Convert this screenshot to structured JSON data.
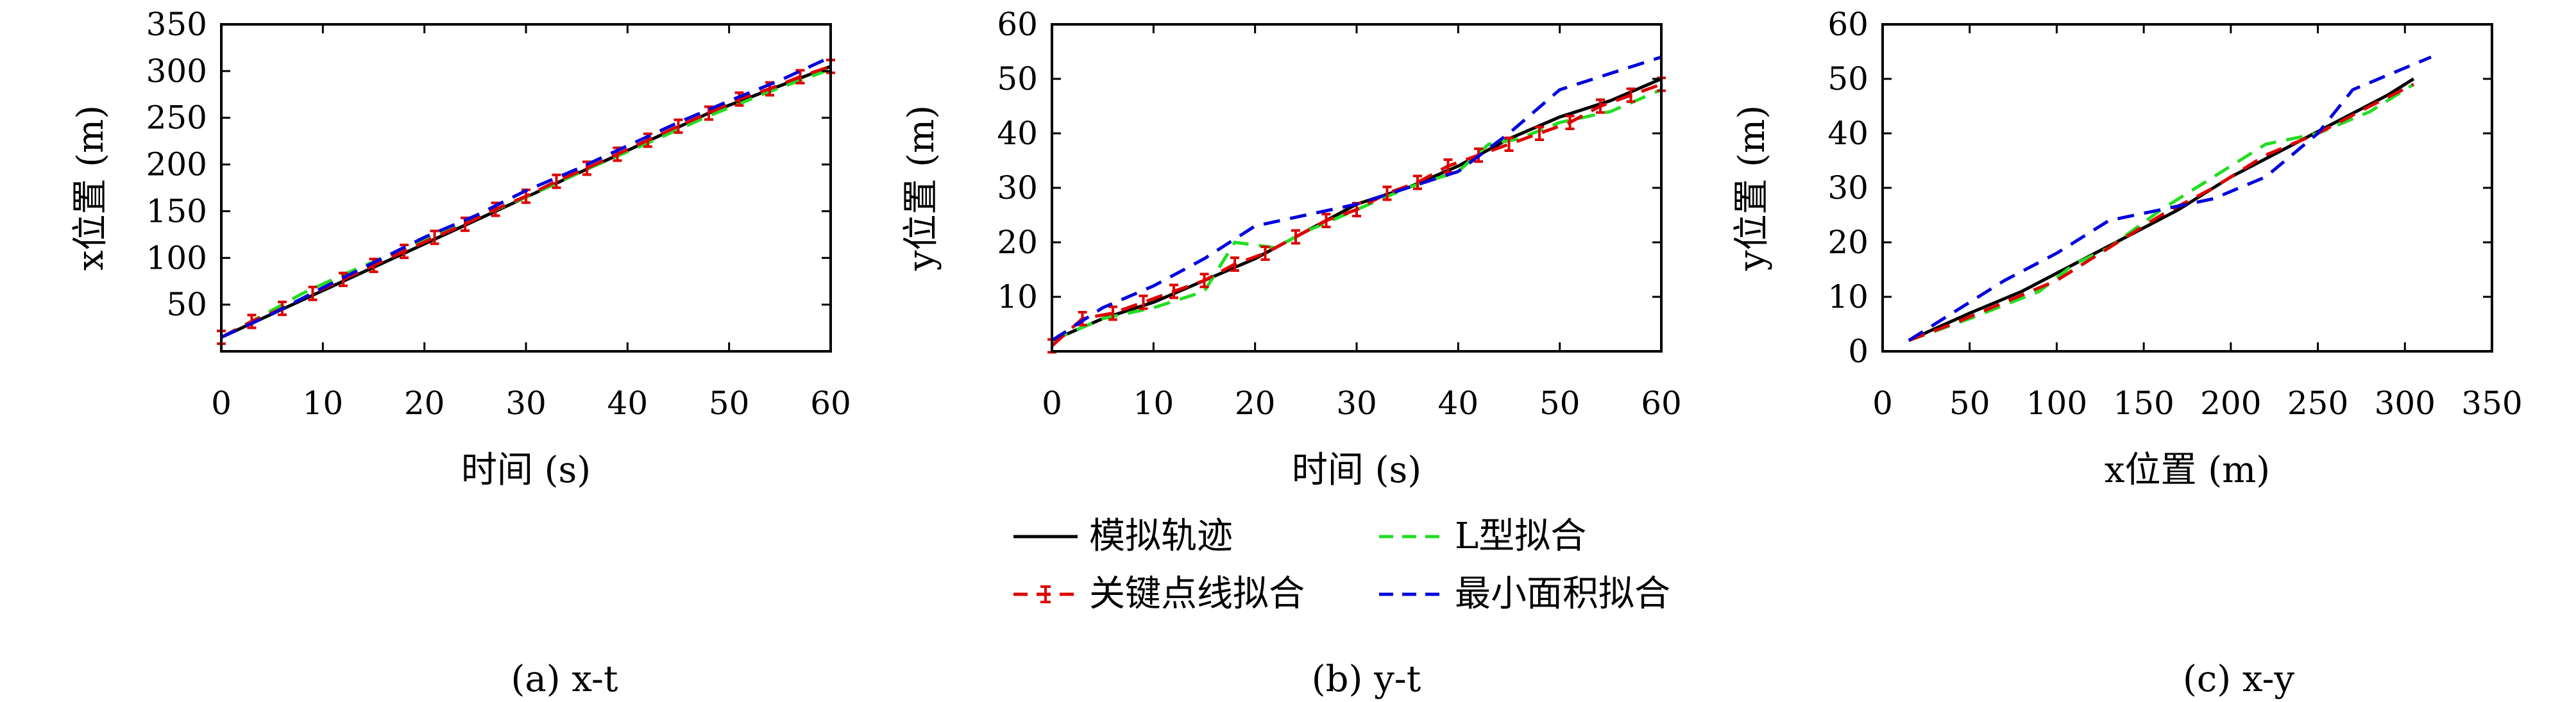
{
  "legend": {
    "items": [
      {
        "label": "模拟轨迹",
        "color": "#000000",
        "style": "solid"
      },
      {
        "label": "L型拟合",
        "color": "#22dd22",
        "style": "dashed"
      },
      {
        "label": "关键点线拟合",
        "color": "#dd0000",
        "style": "dashed-errorbar"
      },
      {
        "label": "最小面积拟合",
        "color": "#0000dd",
        "style": "dashed"
      }
    ]
  },
  "chart_data": [
    {
      "type": "line",
      "caption": "(a) x-t",
      "xlabel": "时间 (s)",
      "ylabel": "x位置 (m)",
      "xlim": [
        0,
        60
      ],
      "ylim": [
        0,
        350
      ],
      "xticks": [
        0,
        10,
        20,
        30,
        40,
        50,
        60
      ],
      "yticks": [
        50,
        100,
        150,
        200,
        250,
        300,
        350
      ],
      "series": [
        {
          "name": "模拟轨迹",
          "color": "#000000",
          "dash": "none",
          "points": [
            [
              0,
              15
            ],
            [
              6,
              45
            ],
            [
              12,
              75
            ],
            [
              18,
              105
            ],
            [
              24,
              135
            ],
            [
              30,
              165
            ],
            [
              36,
              195
            ],
            [
              42,
              225
            ],
            [
              48,
              255
            ],
            [
              54,
              280
            ],
            [
              60,
              305
            ]
          ]
        },
        {
          "name": "L型拟合",
          "color": "#22dd22",
          "dash": "dashed",
          "points": [
            [
              0,
              15
            ],
            [
              4,
              38
            ],
            [
              8,
              62
            ],
            [
              12,
              82
            ],
            [
              18,
              110
            ],
            [
              24,
              138
            ],
            [
              30,
              165
            ],
            [
              36,
              195
            ],
            [
              42,
              223
            ],
            [
              48,
              252
            ],
            [
              54,
              278
            ],
            [
              60,
              302
            ]
          ]
        },
        {
          "name": "关键点线拟合",
          "color": "#dd0000",
          "dash": "dashed",
          "errorbar": true,
          "points": [
            [
              0,
              15
            ],
            [
              3,
              32
            ],
            [
              6,
              46
            ],
            [
              9,
              62
            ],
            [
              12,
              77
            ],
            [
              15,
              92
            ],
            [
              18,
              107
            ],
            [
              21,
              122
            ],
            [
              24,
              136
            ],
            [
              27,
              152
            ],
            [
              30,
              166
            ],
            [
              33,
              182
            ],
            [
              36,
              196
            ],
            [
              39,
              211
            ],
            [
              42,
              226
            ],
            [
              45,
              241
            ],
            [
              48,
              255
            ],
            [
              51,
              270
            ],
            [
              54,
              281
            ],
            [
              57,
              294
            ],
            [
              60,
              305
            ]
          ]
        },
        {
          "name": "最小面积拟合",
          "color": "#0000dd",
          "dash": "dashed",
          "points": [
            [
              0,
              15
            ],
            [
              5,
              40
            ],
            [
              10,
              68
            ],
            [
              15,
              95
            ],
            [
              20,
              122
            ],
            [
              25,
              145
            ],
            [
              30,
              172
            ],
            [
              35,
              195
            ],
            [
              40,
              220
            ],
            [
              45,
              245
            ],
            [
              50,
              268
            ],
            [
              55,
              290
            ],
            [
              60,
              315
            ]
          ]
        }
      ]
    },
    {
      "type": "line",
      "caption": "(b) y-t",
      "xlabel": "时间 (s)",
      "ylabel": "y位置 (m)",
      "xlim": [
        0,
        60
      ],
      "ylim": [
        0,
        60
      ],
      "xticks": [
        0,
        10,
        20,
        30,
        40,
        50,
        60
      ],
      "yticks": [
        10,
        20,
        30,
        40,
        50,
        60
      ],
      "series": [
        {
          "name": "模拟轨迹",
          "color": "#000000",
          "dash": "none",
          "points": [
            [
              0,
              2
            ],
            [
              5,
              6
            ],
            [
              10,
              9
            ],
            [
              15,
              13
            ],
            [
              20,
              17
            ],
            [
              25,
              22
            ],
            [
              30,
              27
            ],
            [
              35,
              30
            ],
            [
              40,
              34
            ],
            [
              45,
              39
            ],
            [
              50,
              43
            ],
            [
              55,
              46
            ],
            [
              60,
              50
            ]
          ]
        },
        {
          "name": "L型拟合",
          "color": "#22dd22",
          "dash": "dashed",
          "points": [
            [
              0,
              2
            ],
            [
              5,
              6
            ],
            [
              10,
              8
            ],
            [
              15,
              11
            ],
            [
              18,
              20
            ],
            [
              22,
              19
            ],
            [
              25,
              22
            ],
            [
              30,
              26
            ],
            [
              35,
              30
            ],
            [
              40,
              33
            ],
            [
              43,
              38
            ],
            [
              46,
              39
            ],
            [
              50,
              42
            ],
            [
              55,
              44
            ],
            [
              60,
              48
            ]
          ]
        },
        {
          "name": "关键点线拟合",
          "color": "#dd0000",
          "dash": "dashed",
          "errorbar": true,
          "points": [
            [
              0,
              1
            ],
            [
              3,
              6
            ],
            [
              6,
              7
            ],
            [
              9,
              9
            ],
            [
              12,
              11
            ],
            [
              15,
              13
            ],
            [
              18,
              16
            ],
            [
              21,
              18
            ],
            [
              24,
              21
            ],
            [
              27,
              24
            ],
            [
              30,
              26
            ],
            [
              33,
              29
            ],
            [
              36,
              31
            ],
            [
              39,
              34
            ],
            [
              42,
              36
            ],
            [
              45,
              38
            ],
            [
              48,
              40
            ],
            [
              51,
              42
            ],
            [
              54,
              45
            ],
            [
              57,
              47
            ],
            [
              60,
              49
            ]
          ]
        },
        {
          "name": "最小面积拟合",
          "color": "#0000dd",
          "dash": "dashed",
          "points": [
            [
              0,
              2
            ],
            [
              5,
              8
            ],
            [
              10,
              12
            ],
            [
              15,
              17
            ],
            [
              20,
              23
            ],
            [
              25,
              25
            ],
            [
              30,
              27
            ],
            [
              35,
              30
            ],
            [
              40,
              33
            ],
            [
              45,
              40
            ],
            [
              50,
              48
            ],
            [
              55,
              51
            ],
            [
              60,
              54
            ]
          ]
        }
      ]
    },
    {
      "type": "line",
      "caption": "(c) x-y",
      "xlabel": "x位置 (m)",
      "ylabel": "y位置 (m)",
      "xlim": [
        0,
        350
      ],
      "ylim": [
        0,
        60
      ],
      "xticks": [
        0,
        50,
        100,
        150,
        200,
        250,
        300,
        350
      ],
      "yticks": [
        0,
        10,
        20,
        30,
        40,
        50,
        60
      ],
      "series": [
        {
          "name": "模拟轨迹",
          "color": "#000000",
          "dash": "none",
          "points": [
            [
              15,
              2
            ],
            [
              50,
              7
            ],
            [
              80,
              11
            ],
            [
              110,
              16
            ],
            [
              140,
              21
            ],
            [
              170,
              26
            ],
            [
              200,
              32
            ],
            [
              230,
              37
            ],
            [
              260,
              42
            ],
            [
              290,
              47
            ],
            [
              305,
              50
            ]
          ]
        },
        {
          "name": "L型拟合",
          "color": "#22dd22",
          "dash": "dashed",
          "points": [
            [
              15,
              2
            ],
            [
              50,
              6
            ],
            [
              90,
              11
            ],
            [
              110,
              16
            ],
            [
              130,
              19
            ],
            [
              160,
              26
            ],
            [
              200,
              34
            ],
            [
              220,
              38
            ],
            [
              250,
              40
            ],
            [
              280,
              44
            ],
            [
              305,
              49
            ]
          ]
        },
        {
          "name": "关键点线拟合",
          "color": "#dd0000",
          "dash": "dashed",
          "points": [
            [
              15,
              2
            ],
            [
              40,
              5
            ],
            [
              70,
              9
            ],
            [
              100,
              13
            ],
            [
              130,
              19
            ],
            [
              160,
              25
            ],
            [
              190,
              30
            ],
            [
              220,
              36
            ],
            [
              250,
              40
            ],
            [
              280,
              45
            ],
            [
              305,
              49
            ]
          ]
        },
        {
          "name": "最小面积拟合",
          "color": "#0000dd",
          "dash": "dashed",
          "points": [
            [
              15,
              2
            ],
            [
              40,
              7
            ],
            [
              70,
              13
            ],
            [
              100,
              18
            ],
            [
              130,
              24
            ],
            [
              160,
              26
            ],
            [
              190,
              28
            ],
            [
              220,
              32
            ],
            [
              250,
              40
            ],
            [
              270,
              48
            ],
            [
              300,
              52
            ],
            [
              315,
              54
            ]
          ]
        }
      ]
    }
  ]
}
